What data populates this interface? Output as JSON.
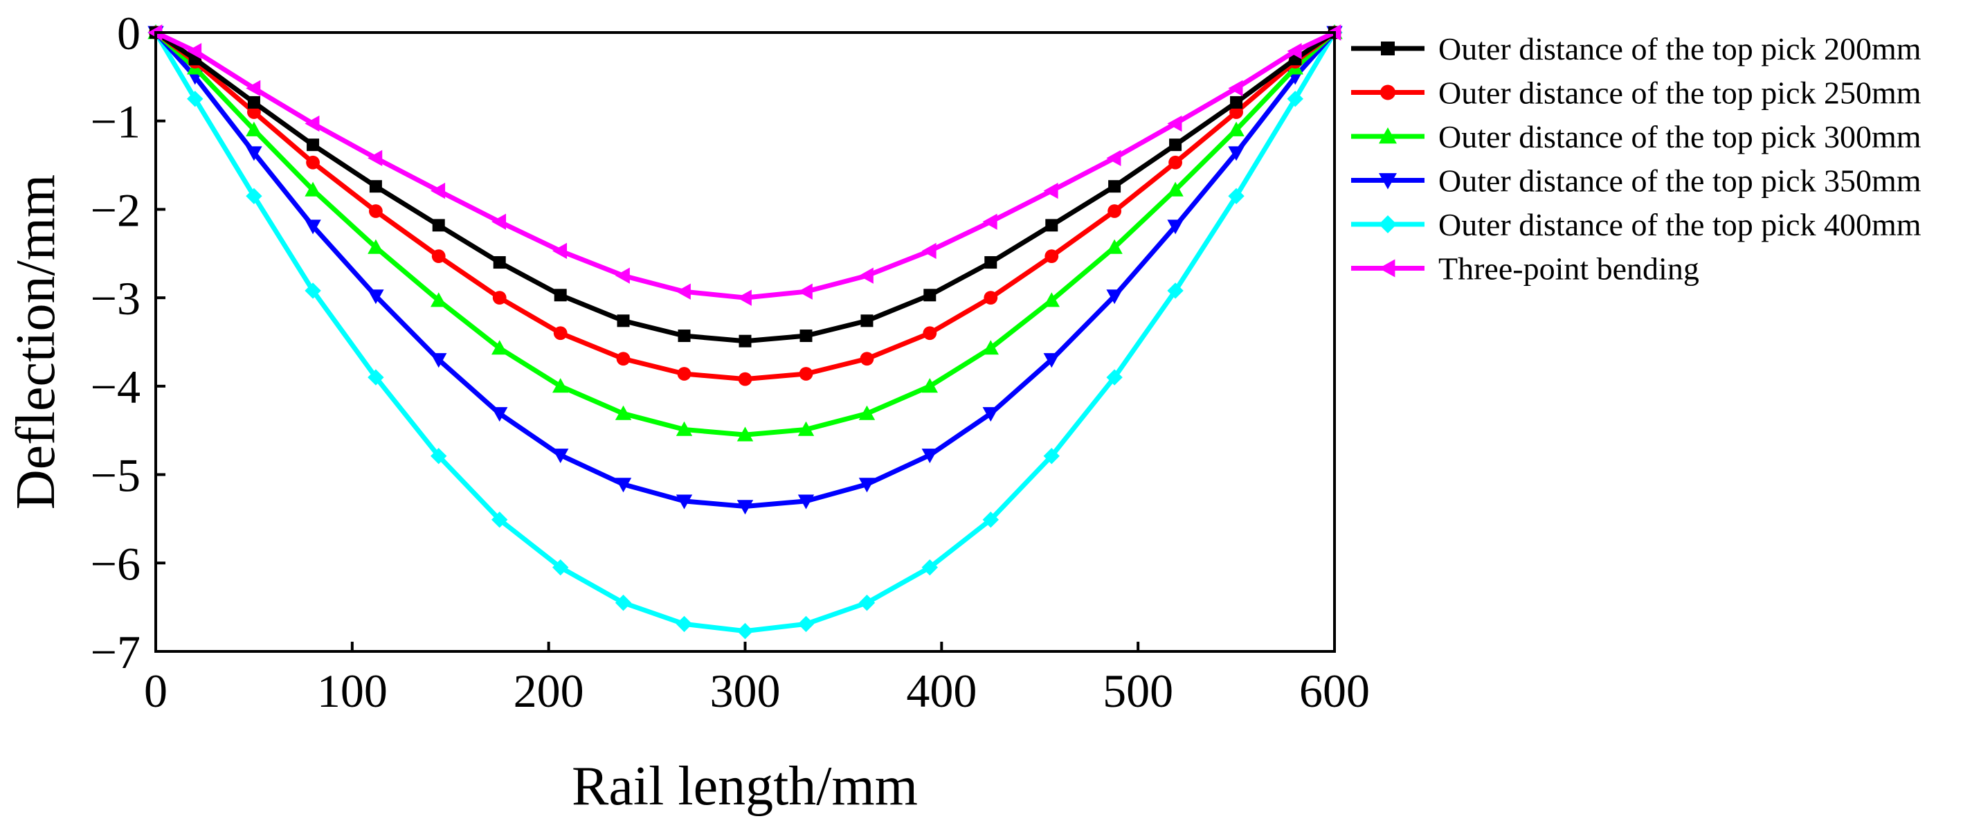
{
  "chart_data": {
    "type": "line",
    "title": "",
    "xlabel": "Rail length/mm",
    "ylabel": "Deflection/mm",
    "xlim": [
      0,
      600
    ],
    "ylim": [
      -7,
      0
    ],
    "xticks": [
      0,
      100,
      200,
      300,
      400,
      500,
      600
    ],
    "yticks": [
      0,
      -1,
      -2,
      -3,
      -4,
      -5,
      -6,
      -7
    ],
    "xtick_labels": [
      "0",
      "100",
      "200",
      "300",
      "400",
      "500",
      "600"
    ],
    "ytick_labels": [
      "0",
      "−1",
      "−2",
      "−3",
      "−4",
      "−5",
      "−6",
      "−7"
    ],
    "grid": false,
    "legend_position": "right",
    "x": [
      0,
      20,
      50,
      80,
      112,
      144,
      175,
      206,
      238,
      269,
      300,
      331,
      362,
      394,
      425,
      456,
      488,
      519,
      550,
      580,
      600
    ],
    "series": [
      {
        "name": "Outer distance of the top pick 200mm",
        "color": "#000000",
        "marker": "square",
        "values": [
          0,
          -0.3,
          -0.79,
          -1.27,
          -1.74,
          -2.18,
          -2.6,
          -2.97,
          -3.26,
          -3.43,
          -3.49,
          -3.43,
          -3.26,
          -2.97,
          -2.6,
          -2.18,
          -1.74,
          -1.27,
          -0.79,
          -0.3,
          0
        ]
      },
      {
        "name": "Outer distance of the top pick 250mm",
        "color": "#ff0000",
        "marker": "circle",
        "values": [
          0,
          -0.33,
          -0.9,
          -1.47,
          -2.02,
          -2.53,
          -3.0,
          -3.4,
          -3.69,
          -3.86,
          -3.92,
          -3.86,
          -3.69,
          -3.4,
          -3.0,
          -2.53,
          -2.02,
          -1.47,
          -0.9,
          -0.33,
          0
        ]
      },
      {
        "name": "Outer distance of the top pick 300mm",
        "color": "#00ff00",
        "marker": "triangle-up",
        "values": [
          0,
          -0.4,
          -1.1,
          -1.78,
          -2.43,
          -3.03,
          -3.57,
          -4.0,
          -4.31,
          -4.49,
          -4.55,
          -4.49,
          -4.31,
          -4.0,
          -3.57,
          -3.03,
          -2.43,
          -1.78,
          -1.1,
          -0.4,
          0
        ]
      },
      {
        "name": "Outer distance of the top pick 350mm",
        "color": "#0000ff",
        "marker": "triangle-down",
        "values": [
          0,
          -0.5,
          -1.36,
          -2.19,
          -2.98,
          -3.7,
          -4.31,
          -4.78,
          -5.11,
          -5.3,
          -5.36,
          -5.3,
          -5.11,
          -4.78,
          -4.31,
          -3.7,
          -2.98,
          -2.19,
          -1.36,
          -0.5,
          0
        ]
      },
      {
        "name": "Outer distance of the top pick 400mm",
        "color": "#00ffff",
        "marker": "diamond",
        "values": [
          0,
          -0.75,
          -1.85,
          -2.92,
          -3.9,
          -4.79,
          -5.51,
          -6.05,
          -6.45,
          -6.69,
          -6.77,
          -6.69,
          -6.45,
          -6.05,
          -5.51,
          -4.79,
          -3.9,
          -2.92,
          -1.85,
          -0.75,
          0
        ]
      },
      {
        "name": "Three-point bending",
        "color": "#ff00ff",
        "marker": "triangle-left",
        "values": [
          0,
          -0.21,
          -0.63,
          -1.03,
          -1.42,
          -1.79,
          -2.14,
          -2.47,
          -2.75,
          -2.93,
          -3.0,
          -2.93,
          -2.75,
          -2.47,
          -2.14,
          -1.79,
          -1.42,
          -1.03,
          -0.63,
          -0.21,
          0
        ]
      }
    ]
  }
}
